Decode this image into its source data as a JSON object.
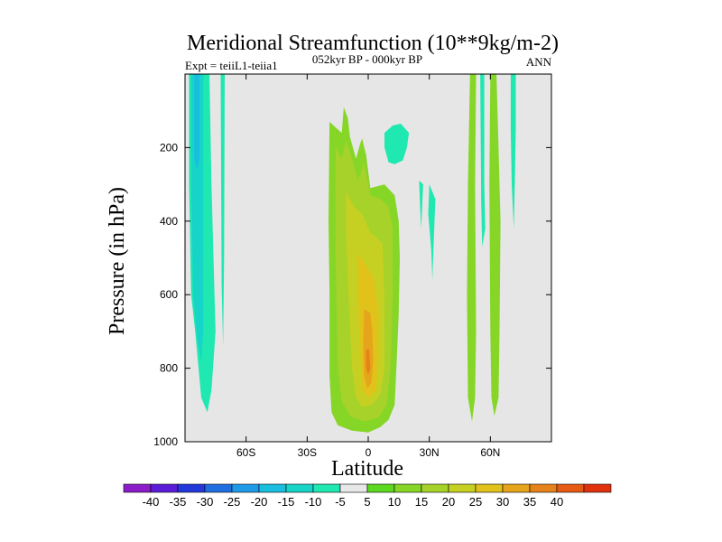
{
  "chart_data": {
    "type": "heatmap",
    "title": "Meridional Streamfunction (10**9kg/m-2)",
    "left_label": "Expt = teiiL1-teiia1",
    "center_subtitle": "052kyr BP - 000kyr BP",
    "right_label": "ANN",
    "xlabel": "Latitude",
    "ylabel": "Pressure (in hPa)",
    "x_ticks": [
      "60S",
      "30S",
      "0",
      "30N",
      "60N"
    ],
    "x_tick_values": [
      -60,
      -30,
      0,
      30,
      60
    ],
    "xlim": [
      -90,
      90
    ],
    "y_ticks": [
      "200",
      "400",
      "600",
      "800",
      "1000"
    ],
    "y_tick_values": [
      200,
      400,
      600,
      800,
      1000
    ],
    "ylim": [
      0,
      1000
    ],
    "background_color": "#e6e6e6",
    "colorbar": {
      "colors": [
        "#8b1cc7",
        "#5a1cd6",
        "#2238d8",
        "#1f6fe0",
        "#1f9ae8",
        "#18bde0",
        "#16d4c8",
        "#1fe8b0",
        "#e8e8e8",
        "#5cd81e",
        "#86d628",
        "#a6d22a",
        "#c6d022",
        "#e0c21a",
        "#e6a41a",
        "#e6821a",
        "#e65a14",
        "#e0300e"
      ],
      "labels": [
        "-40",
        "-35",
        "-30",
        "-25",
        "-20",
        "-15",
        "-10",
        "-5",
        "5",
        "10",
        "15",
        "20",
        "25",
        "30",
        "35",
        "40"
      ]
    },
    "features": [
      {
        "name": "southern-polar-negative-cell",
        "min_value": -15,
        "lat_range": [
          -88,
          -70
        ],
        "pressure_range": [
          0,
          920
        ]
      },
      {
        "name": "southern-thin-negative-streak",
        "min_value": -10,
        "lat_range": [
          -72,
          -70
        ],
        "pressure_range": [
          0,
          740
        ]
      },
      {
        "name": "tropical-positive-cell",
        "max_value": 30,
        "lat_range": [
          -18,
          16
        ],
        "pressure_range": [
          90,
          975
        ]
      },
      {
        "name": "subtropical-negative-patch",
        "min_value": -10,
        "lat_range": [
          8,
          20
        ],
        "pressure_range": [
          130,
          250
        ]
      },
      {
        "name": "northern-thin-negative-streaks",
        "min_value": -10,
        "lat_range": [
          26,
          34
        ],
        "pressure_range": [
          300,
          570
        ]
      },
      {
        "name": "northern-midlatitude-positive-cells",
        "max_value": 10,
        "lat_range": [
          48,
          66
        ],
        "pressure_range": [
          0,
          950
        ]
      },
      {
        "name": "northern-polar-negative-streaks",
        "min_value": -10,
        "lat_range": [
          50,
          72
        ],
        "pressure_range": [
          0,
          470
        ]
      }
    ]
  }
}
